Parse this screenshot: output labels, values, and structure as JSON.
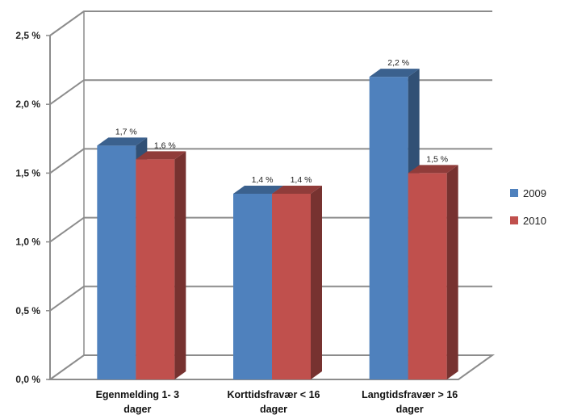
{
  "chart_data": {
    "type": "bar",
    "categories": [
      [
        "Egenmelding 1- 3",
        "dager"
      ],
      [
        "Korttidsfravær < 16",
        "dager"
      ],
      [
        "Langtidsfravær > 16",
        "dager"
      ]
    ],
    "series": [
      {
        "name": "2009",
        "values": [
          1.7,
          1.35,
          2.2
        ],
        "labels": [
          "1,7 %",
          "1,4 %",
          "2,2 %"
        ],
        "color": "#4f81bd"
      },
      {
        "name": "2010",
        "values": [
          1.6,
          1.35,
          1.5
        ],
        "labels": [
          "1,6 %",
          "1,4 %",
          "1,5 %"
        ],
        "color": "#c0504d"
      }
    ],
    "yticks": [
      {
        "value": 0,
        "label": "0,0 %"
      },
      {
        "value": 0.5,
        "label": "0,5 %"
      },
      {
        "value": 1.0,
        "label": "1,0 %"
      },
      {
        "value": 1.5,
        "label": "1,5 %"
      },
      {
        "value": 2.0,
        "label": "2,0 %"
      },
      {
        "value": 2.5,
        "label": "2,5 %"
      }
    ],
    "ylim": [
      0,
      2.5
    ],
    "grid": true,
    "legend": "right"
  }
}
